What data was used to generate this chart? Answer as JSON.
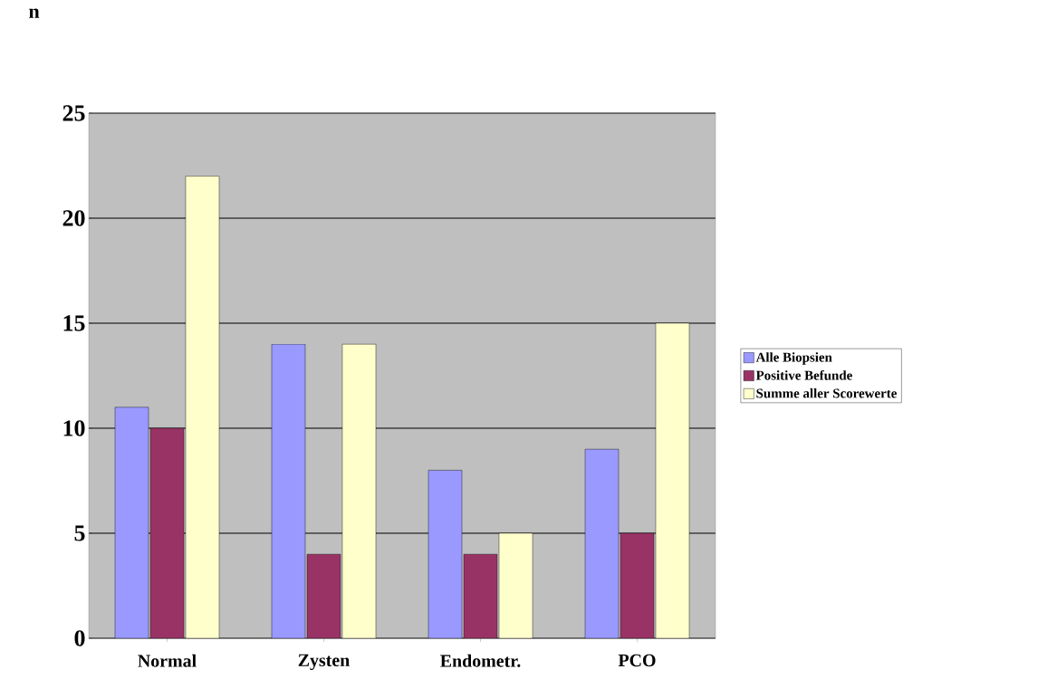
{
  "chart_data": {
    "type": "bar",
    "ylabel": "n",
    "categories": [
      "Normal",
      "Zysten",
      "Endometr.",
      "PCO"
    ],
    "series": [
      {
        "name": "Alle Biopsien",
        "color": "#9999ff",
        "values": [
          11,
          14,
          8,
          9
        ]
      },
      {
        "name": "Positive Befunde",
        "color": "#993366",
        "values": [
          10,
          4,
          4,
          5
        ]
      },
      {
        "name": "Summe aller Scorewerte",
        "color": "#ffffcc",
        "values": [
          22,
          14,
          5,
          15
        ]
      }
    ],
    "ylim": [
      0,
      25
    ],
    "yticks": [
      0,
      5,
      10,
      15,
      20,
      25
    ],
    "grid": "y",
    "legend": "right"
  }
}
